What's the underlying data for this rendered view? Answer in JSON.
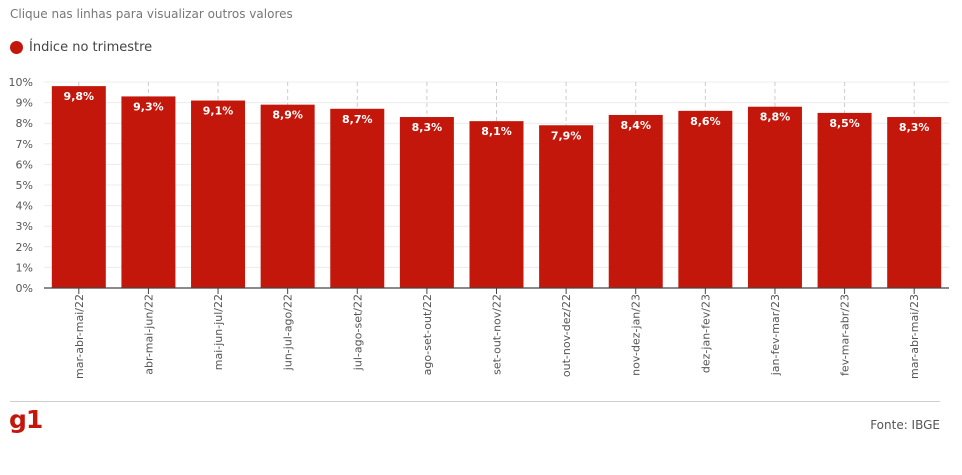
{
  "hint": "Clique nas linhas para visualizar outros valores",
  "legend": {
    "label": "Índice no trimestre",
    "color": "#c4170c"
  },
  "footer": {
    "logo": "g1",
    "source": "Fonte: IBGE"
  },
  "chart_data": {
    "type": "bar",
    "categories": [
      "mar-abr-mai/22",
      "abr-mai-jun/22",
      "mai-jun-jul/22",
      "jun-jul-ago/22",
      "jul-ago-set/22",
      "ago-set-out/22",
      "set-out-nov/22",
      "out-nov-dez/22",
      "nov-dez-jan/23",
      "dez-jan-fev/23",
      "jan-fev-mar/23",
      "fev-mar-abr/23",
      "mar-abr-mai/23"
    ],
    "series": [
      {
        "name": "Índice no trimestre",
        "values": [
          9.8,
          9.3,
          9.1,
          8.9,
          8.7,
          8.3,
          8.1,
          7.9,
          8.4,
          8.6,
          8.8,
          8.5,
          8.3
        ],
        "labels": [
          "9,8%",
          "9,3%",
          "9,1%",
          "8,9%",
          "8,7%",
          "8,3%",
          "8,1%",
          "7,9%",
          "8,4%",
          "8,6%",
          "8,8%",
          "8,5%",
          "8,3%"
        ]
      }
    ],
    "yticks": [
      "0%",
      "1%",
      "2%",
      "3%",
      "4%",
      "5%",
      "6%",
      "7%",
      "8%",
      "9%",
      "10%"
    ],
    "ylim": [
      0,
      10
    ],
    "grid": true,
    "bar_color": "#c4170c"
  }
}
